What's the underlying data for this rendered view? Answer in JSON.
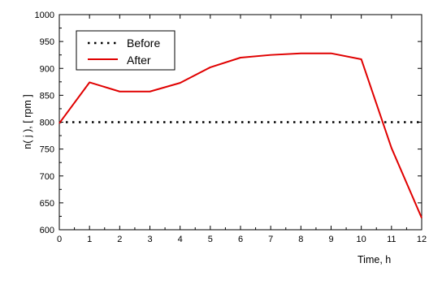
{
  "chart_data": {
    "type": "line",
    "xlabel": "Time, h",
    "ylabel": "n( j ), [ rpm ]",
    "xlim": [
      0,
      12
    ],
    "ylim": [
      600,
      1000
    ],
    "x_ticks": [
      0,
      1,
      2,
      3,
      4,
      5,
      6,
      7,
      8,
      9,
      10,
      11,
      12
    ],
    "y_ticks": [
      600,
      650,
      700,
      750,
      800,
      850,
      900,
      950,
      1000
    ],
    "grid": false,
    "legend_position": "top-left",
    "series": [
      {
        "name": "Before",
        "style": "dotted",
        "color": "#000000",
        "x": [
          0,
          12
        ],
        "y": [
          800,
          800
        ]
      },
      {
        "name": "After",
        "style": "solid",
        "color": "#e00000",
        "x": [
          0,
          1,
          2,
          3,
          4,
          5,
          6,
          7,
          8,
          9,
          10,
          11,
          12
        ],
        "y": [
          798,
          874,
          857,
          857,
          873,
          902,
          920,
          925,
          928,
          928,
          917,
          752,
          622
        ]
      }
    ]
  }
}
